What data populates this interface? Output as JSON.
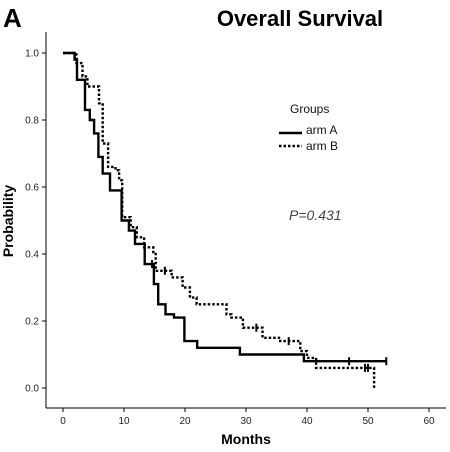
{
  "panel_label": "A",
  "chart_data": {
    "type": "line",
    "title": "Overall Survival",
    "xlabel": "Months",
    "ylabel": "Probability",
    "xlim": [
      0,
      60
    ],
    "ylim": [
      0,
      1.0
    ],
    "x_ticks": [
      "0",
      "10",
      "20",
      "30",
      "40",
      "50",
      "60"
    ],
    "y_ticks": [
      "0.0",
      "0.2",
      "0.4",
      "0.6",
      "0.8",
      "1.0"
    ],
    "grid": false,
    "legend": {
      "title": "Groups",
      "placement": "right-center",
      "entries": [
        "arm A",
        "arm B"
      ]
    },
    "annotation": "P=0.431",
    "series": [
      {
        "name": "arm A",
        "style": "solid",
        "color": "#000000",
        "steps": [
          [
            0,
            1.0
          ],
          [
            1.9,
            1.0
          ],
          [
            1.9,
            0.98
          ],
          [
            2.3,
            0.98
          ],
          [
            2.3,
            0.92
          ],
          [
            3.6,
            0.92
          ],
          [
            3.6,
            0.83
          ],
          [
            4.4,
            0.83
          ],
          [
            4.4,
            0.8
          ],
          [
            5.1,
            0.8
          ],
          [
            5.1,
            0.76
          ],
          [
            5.8,
            0.76
          ],
          [
            5.8,
            0.69
          ],
          [
            6.5,
            0.69
          ],
          [
            6.5,
            0.64
          ],
          [
            7.7,
            0.64
          ],
          [
            7.7,
            0.59
          ],
          [
            9.6,
            0.59
          ],
          [
            9.6,
            0.5
          ],
          [
            10.8,
            0.5
          ],
          [
            10.8,
            0.47
          ],
          [
            11.8,
            0.47
          ],
          [
            11.8,
            0.43
          ],
          [
            13.4,
            0.43
          ],
          [
            13.4,
            0.37
          ],
          [
            14.9,
            0.37
          ],
          [
            14.9,
            0.31
          ],
          [
            15.6,
            0.31
          ],
          [
            15.6,
            0.25
          ],
          [
            16.8,
            0.25
          ],
          [
            16.8,
            0.22
          ],
          [
            18.2,
            0.22
          ],
          [
            18.2,
            0.21
          ],
          [
            19.9,
            0.21
          ],
          [
            19.9,
            0.14
          ],
          [
            22.0,
            0.14
          ],
          [
            22.0,
            0.12
          ],
          [
            29.0,
            0.12
          ],
          [
            29.0,
            0.1
          ],
          [
            39.5,
            0.1
          ],
          [
            39.5,
            0.08
          ],
          [
            53.0,
            0.08
          ]
        ],
        "censored": [
          [
            14.6,
            0.37
          ],
          [
            46.9,
            0.08
          ],
          [
            53.0,
            0.08
          ]
        ]
      },
      {
        "name": "arm B",
        "style": "dotted",
        "color": "#000000",
        "steps": [
          [
            0,
            1.0
          ],
          [
            2.2,
            1.0
          ],
          [
            2.2,
            0.97
          ],
          [
            3.2,
            0.97
          ],
          [
            3.2,
            0.93
          ],
          [
            4.0,
            0.93
          ],
          [
            4.0,
            0.9
          ],
          [
            5.9,
            0.9
          ],
          [
            5.9,
            0.85
          ],
          [
            6.5,
            0.85
          ],
          [
            6.5,
            0.73
          ],
          [
            7.4,
            0.73
          ],
          [
            7.4,
            0.66
          ],
          [
            8.6,
            0.66
          ],
          [
            8.6,
            0.65
          ],
          [
            9.2,
            0.65
          ],
          [
            9.2,
            0.62
          ],
          [
            9.7,
            0.62
          ],
          [
            9.7,
            0.51
          ],
          [
            11.1,
            0.51
          ],
          [
            11.1,
            0.48
          ],
          [
            12.1,
            0.48
          ],
          [
            12.1,
            0.45
          ],
          [
            13.3,
            0.45
          ],
          [
            13.3,
            0.42
          ],
          [
            14.8,
            0.42
          ],
          [
            14.8,
            0.4
          ],
          [
            15.2,
            0.4
          ],
          [
            15.2,
            0.35
          ],
          [
            17.8,
            0.35
          ],
          [
            17.8,
            0.33
          ],
          [
            19.6,
            0.33
          ],
          [
            19.6,
            0.3
          ],
          [
            20.8,
            0.3
          ],
          [
            20.8,
            0.27
          ],
          [
            21.9,
            0.27
          ],
          [
            21.9,
            0.25
          ],
          [
            26.8,
            0.25
          ],
          [
            26.8,
            0.22
          ],
          [
            27.6,
            0.22
          ],
          [
            27.6,
            0.21
          ],
          [
            29.5,
            0.21
          ],
          [
            29.5,
            0.18
          ],
          [
            32.7,
            0.18
          ],
          [
            32.7,
            0.15
          ],
          [
            35.6,
            0.15
          ],
          [
            35.6,
            0.14
          ],
          [
            38.9,
            0.14
          ],
          [
            38.9,
            0.11
          ],
          [
            40.0,
            0.11
          ],
          [
            40.0,
            0.09
          ],
          [
            41.5,
            0.09
          ],
          [
            41.5,
            0.06
          ],
          [
            51.0,
            0.06
          ],
          [
            51.0,
            0.0
          ]
        ],
        "censored": [
          [
            16.7,
            0.35
          ],
          [
            31.7,
            0.18
          ],
          [
            37.0,
            0.14
          ],
          [
            49.5,
            0.06
          ],
          [
            50.0,
            0.06
          ]
        ]
      }
    ]
  }
}
